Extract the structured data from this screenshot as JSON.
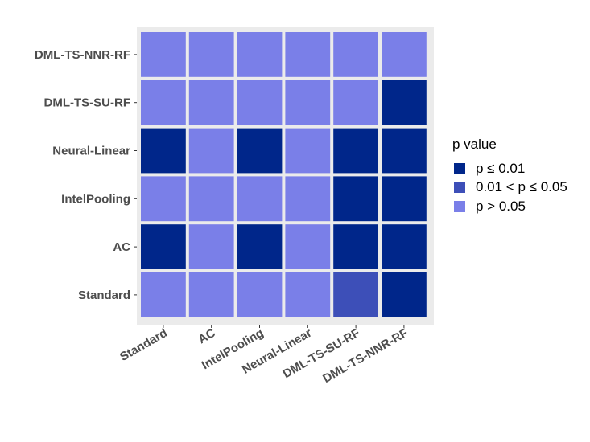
{
  "chart_data": {
    "type": "heatmap",
    "x_categories": [
      "Standard",
      "AC",
      "IntelPooling",
      "Neural-Linear",
      "DML-TS-SU-RF",
      "DML-TS-NNR-RF"
    ],
    "y_categories": [
      "Standard",
      "AC",
      "IntelPooling",
      "Neural-Linear",
      "DML-TS-SU-RF",
      "DML-TS-NNR-RF"
    ],
    "rows": [
      {
        "y": "DML-TS-NNR-RF",
        "values": [
          "p > 0.05",
          "p > 0.05",
          "p > 0.05",
          "p > 0.05",
          "p > 0.05",
          "p > 0.05"
        ]
      },
      {
        "y": "DML-TS-SU-RF",
        "values": [
          "p > 0.05",
          "p > 0.05",
          "p > 0.05",
          "p > 0.05",
          "p > 0.05",
          "p ≤ 0.01"
        ]
      },
      {
        "y": "Neural-Linear",
        "values": [
          "p ≤ 0.01",
          "p > 0.05",
          "p ≤ 0.01",
          "p > 0.05",
          "p ≤ 0.01",
          "p ≤ 0.01"
        ]
      },
      {
        "y": "IntelPooling",
        "values": [
          "p > 0.05",
          "p > 0.05",
          "p > 0.05",
          "p > 0.05",
          "p ≤ 0.01",
          "p ≤ 0.01"
        ]
      },
      {
        "y": "AC",
        "values": [
          "p ≤ 0.01",
          "p > 0.05",
          "p ≤ 0.01",
          "p > 0.05",
          "p ≤ 0.01",
          "p ≤ 0.01"
        ]
      },
      {
        "y": "Standard",
        "values": [
          "p > 0.05",
          "p > 0.05",
          "p > 0.05",
          "p > 0.05",
          "0.01 < p ≤ 0.05",
          "p ≤ 0.01"
        ]
      }
    ],
    "legend": {
      "title": "p value",
      "placement": "right",
      "entries": [
        {
          "label": "p ≤ 0.01",
          "color": "#00268a"
        },
        {
          "label": "0.01 < p ≤ 0.05",
          "color": "#3d4fb8"
        },
        {
          "label": "p > 0.05",
          "color": "#7a7fe8"
        }
      ]
    },
    "title": "",
    "xlabel": "",
    "ylabel": "",
    "grid": true,
    "panel_background": "#ebebeb"
  }
}
